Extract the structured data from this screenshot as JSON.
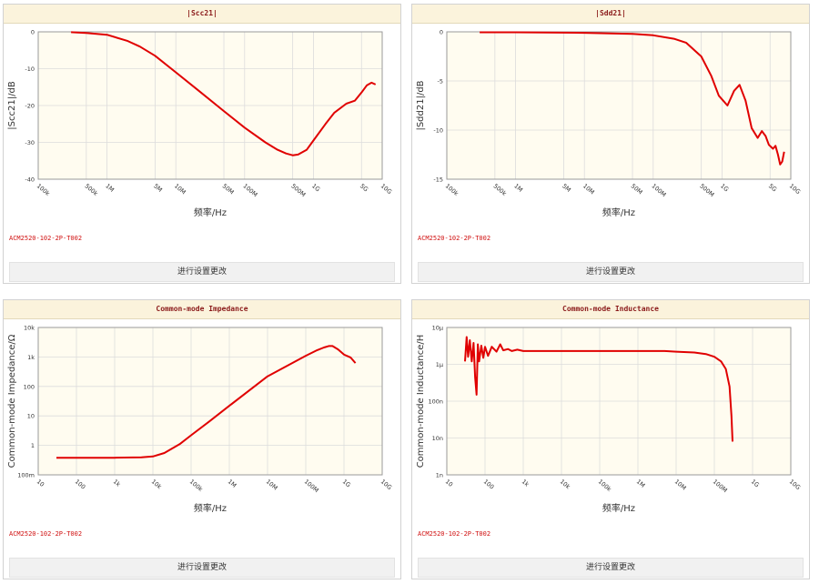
{
  "panels": [
    {
      "title": "|Scc21|",
      "part_number": "ACM2520-102-2P-T002",
      "settings_button": "进行设置更改",
      "chart_data": {
        "type": "line",
        "title": "|Scc21|",
        "xlabel": "频率/Hz",
        "ylabel": "|Scc21|/dB",
        "x_scale": "log",
        "xlim": [
          100000,
          10000000000
        ],
        "ylim": [
          -40,
          0
        ],
        "yticks": [
          0,
          -10,
          -20,
          -30,
          -40
        ],
        "ytick_labels": [
          "0",
          "-10",
          "-20",
          "-30",
          "-40"
        ],
        "xticks": [
          100000,
          500000,
          1000000,
          5000000,
          10000000,
          50000000,
          100000000,
          500000000,
          1000000000,
          5000000000,
          10000000000
        ],
        "xtick_labels": [
          "100k",
          "500k",
          "1M",
          "5M",
          "10M",
          "50M",
          "100M",
          "500M",
          "1G",
          "5G",
          "10G"
        ],
        "grid": true,
        "series": [
          {
            "color": "#e00000",
            "x": [
              300000,
              500000,
              1000000,
              2000000,
              3000000,
              5000000,
              10000000,
              20000000,
              50000000,
              100000000,
              200000000,
              300000000,
              400000000,
              500000000,
              600000000,
              800000000,
              1000000000,
              1500000000,
              2000000000,
              3000000000,
              4000000000,
              5000000000,
              6000000000,
              7000000000,
              8000000000
            ],
            "y": [
              -0.1,
              -0.3,
              -0.8,
              -2.5,
              -4,
              -6.5,
              -11,
              -15.5,
              -21.5,
              -26,
              -30,
              -32,
              -33,
              -33.5,
              -33.3,
              -32,
              -29.5,
              -25,
              -22,
              -19.5,
              -18.7,
              -16.5,
              -14.5,
              -13.8,
              -14.3
            ]
          }
        ]
      }
    },
    {
      "title": "|Sdd21|",
      "part_number": "ACM2520-102-2P-T002",
      "settings_button": "进行设置更改",
      "chart_data": {
        "type": "line",
        "title": "|Sdd21|",
        "xlabel": "频率/Hz",
        "ylabel": "|Sdd21|/dB",
        "x_scale": "log",
        "xlim": [
          100000,
          10000000000
        ],
        "ylim": [
          -15,
          0
        ],
        "yticks": [
          0,
          -5,
          -10,
          -15
        ],
        "ytick_labels": [
          "0",
          "-5",
          "-10",
          "-15"
        ],
        "xticks": [
          100000,
          500000,
          1000000,
          5000000,
          10000000,
          50000000,
          100000000,
          500000000,
          1000000000,
          5000000000,
          10000000000
        ],
        "xtick_labels": [
          "100k",
          "500k",
          "1M",
          "5M",
          "10M",
          "50M",
          "100M",
          "500M",
          "1G",
          "5G",
          "10G"
        ],
        "grid": true,
        "series": [
          {
            "color": "#e00000",
            "x": [
              300000,
              1000000,
              10000000,
              50000000,
              100000000,
              200000000,
              300000000,
              500000000,
              700000000,
              900000000,
              1200000000,
              1500000000,
              1800000000,
              2200000000,
              2700000000,
              3300000000,
              3800000000,
              4300000000,
              4800000000,
              5500000000,
              6000000000,
              6500000000,
              7000000000,
              7500000000,
              8000000000
            ],
            "y": [
              -0.05,
              -0.05,
              -0.1,
              -0.2,
              -0.35,
              -0.7,
              -1.1,
              -2.5,
              -4.5,
              -6.5,
              -7.5,
              -6,
              -5.4,
              -7,
              -9.8,
              -10.8,
              -10.1,
              -10.6,
              -11.5,
              -11.9,
              -11.6,
              -12.5,
              -13.5,
              -13.2,
              -12.2
            ]
          }
        ]
      }
    },
    {
      "title": "Common-mode Impedance",
      "part_number": "ACM2520-102-2P-T002",
      "settings_button": "进行设置更改",
      "chart_data": {
        "type": "line",
        "title": "Common-mode Impedance",
        "xlabel": "频率/Hz",
        "ylabel": "Common-mode Impedance/Ω",
        "x_scale": "log",
        "y_scale": "log",
        "xlim": [
          10,
          10000000000
        ],
        "ylim": [
          0.1,
          10000
        ],
        "yticks": [
          10000,
          1000,
          100,
          10,
          1,
          0.1
        ],
        "ytick_labels": [
          "10k",
          "1k",
          "100",
          "10",
          "1",
          "100m"
        ],
        "xticks": [
          10,
          100,
          1000,
          10000,
          100000,
          1000000,
          10000000,
          100000000,
          1000000000,
          10000000000
        ],
        "xtick_labels": [
          "10",
          "100",
          "1k",
          "10k",
          "100k",
          "1M",
          "10M",
          "100M",
          "1G",
          "10G"
        ],
        "grid": true,
        "series": [
          {
            "color": "#e00000",
            "x": [
              30,
              100,
              1000,
              5000,
              10000,
              20000,
              50000,
              100000,
              300000,
              1000000,
              10000000,
              100000000,
              200000000,
              300000000,
              400000000,
              500000000,
              700000000,
              1000000000,
              1500000000,
              2000000000
            ],
            "y": [
              0.38,
              0.38,
              0.38,
              0.39,
              0.42,
              0.55,
              1.1,
              2.2,
              6.5,
              22,
              220,
              1100,
              1700,
              2100,
              2350,
              2350,
              1800,
              1200,
              950,
              620
            ]
          }
        ]
      }
    },
    {
      "title": "Common-mode Inductance",
      "part_number": "ACM2520-102-2P-T002",
      "settings_button": "进行设置更改",
      "chart_data": {
        "type": "line",
        "title": "Common-mode Inductance",
        "xlabel": "频率/Hz",
        "ylabel": "Common-mode Inductance/H",
        "x_scale": "log",
        "y_scale": "log",
        "xlim": [
          10,
          10000000000
        ],
        "ylim": [
          1e-09,
          1e-05
        ],
        "yticks": [
          1e-05,
          1e-06,
          1e-07,
          1e-08,
          1e-09
        ],
        "ytick_labels": [
          "10µ",
          "1µ",
          "100n",
          "10n",
          "1n"
        ],
        "xticks": [
          10,
          100,
          1000,
          10000,
          100000,
          1000000,
          10000000,
          100000000,
          1000000000,
          10000000000
        ],
        "xtick_labels": [
          "10",
          "100",
          "1k",
          "10k",
          "100k",
          "1M",
          "10M",
          "100M",
          "1G",
          "10G"
        ],
        "grid": true,
        "series": [
          {
            "color": "#e00000",
            "x": [
              30,
              33,
              36,
              40,
              45,
              50,
              55,
              60,
              65,
              70,
              80,
              90,
              100,
              120,
              150,
              200,
              250,
              300,
              400,
              500,
              700,
              1000,
              2000,
              10000,
              100000,
              1000000,
              5000000,
              10000000,
              30000000,
              60000000,
              100000000,
              150000000,
              200000000,
              250000000,
              280000000,
              300000000
            ],
            "y": [
              1.2e-06,
              5.5e-06,
              1.6e-06,
              4.5e-06,
              1.2e-06,
              3.8e-06,
              4.5e-07,
              1.5e-07,
              3.5e-06,
              1.2e-06,
              3.2e-06,
              1.5e-06,
              3e-06,
              1.7e-06,
              3e-06,
              2.2e-06,
              3.5e-06,
              2.4e-06,
              2.6e-06,
              2.3e-06,
              2.5e-06,
              2.3e-06,
              2.3e-06,
              2.3e-06,
              2.3e-06,
              2.3e-06,
              2.3e-06,
              2.2e-06,
              2.1e-06,
              1.9e-06,
              1.6e-06,
              1.2e-06,
              7.5e-07,
              2.5e-07,
              4e-08,
              8e-09
            ]
          }
        ]
      }
    }
  ]
}
